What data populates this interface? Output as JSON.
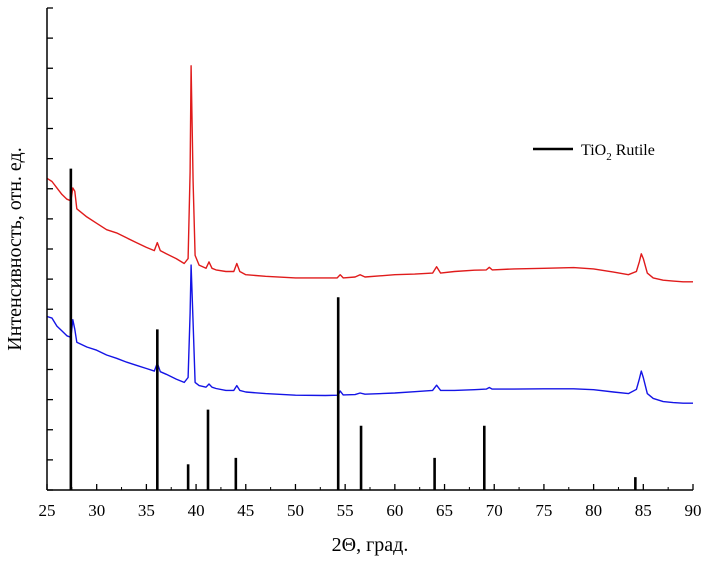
{
  "chart_data": {
    "type": "line",
    "xlabel": "2Θ, град.",
    "ylabel": "Интенсивность, отн. ед.",
    "xlim": [
      25,
      90
    ],
    "x_ticks": [
      25,
      30,
      35,
      40,
      45,
      50,
      55,
      60,
      65,
      70,
      75,
      80,
      85,
      90
    ],
    "y_tick_count": 16,
    "grid": false,
    "legend": {
      "placement": "top-right",
      "entries": [
        {
          "label": "TiO₂ Rutile",
          "label_main": "TiO",
          "label_sub": "2",
          "label_tail": " Rutile",
          "color": "#000000",
          "style": "stick"
        }
      ]
    },
    "series": [
      {
        "color": "#e01b1b",
        "style": "line",
        "points": [
          [
            25.0,
            97
          ],
          [
            25.5,
            96
          ],
          [
            26.0,
            94
          ],
          [
            26.5,
            92
          ],
          [
            27.0,
            90.5
          ],
          [
            27.4,
            90
          ],
          [
            27.6,
            94
          ],
          [
            27.8,
            93
          ],
          [
            28.0,
            87.5
          ],
          [
            29,
            85
          ],
          [
            30,
            83
          ],
          [
            31,
            81
          ],
          [
            32,
            80
          ],
          [
            33,
            78.5
          ],
          [
            34,
            77
          ],
          [
            35,
            75.5
          ],
          [
            35.8,
            74.5
          ],
          [
            36.1,
            77
          ],
          [
            36.4,
            74.5
          ],
          [
            37,
            73.5
          ],
          [
            38,
            72
          ],
          [
            38.8,
            70.5
          ],
          [
            39.2,
            72
          ],
          [
            39.4,
            99
          ],
          [
            39.5,
            132
          ],
          [
            39.7,
            96
          ],
          [
            39.9,
            73
          ],
          [
            40.3,
            70
          ],
          [
            41,
            69
          ],
          [
            41.3,
            71
          ],
          [
            41.6,
            69
          ],
          [
            42,
            68.5
          ],
          [
            43,
            68
          ],
          [
            43.8,
            68
          ],
          [
            44.1,
            70.5
          ],
          [
            44.4,
            68
          ],
          [
            45,
            67
          ],
          [
            47,
            66.5
          ],
          [
            50,
            66
          ],
          [
            53,
            66
          ],
          [
            54.2,
            66
          ],
          [
            54.5,
            67
          ],
          [
            54.8,
            66
          ],
          [
            56,
            66.3
          ],
          [
            56.5,
            67
          ],
          [
            57,
            66.3
          ],
          [
            60,
            67
          ],
          [
            62,
            67.2
          ],
          [
            63.8,
            67.5
          ],
          [
            64.2,
            69.5
          ],
          [
            64.6,
            67.5
          ],
          [
            66,
            68
          ],
          [
            68,
            68.4
          ],
          [
            69.2,
            68.5
          ],
          [
            69.5,
            69.3
          ],
          [
            69.8,
            68.5
          ],
          [
            72,
            68.8
          ],
          [
            75,
            69
          ],
          [
            78,
            69.2
          ],
          [
            80,
            68.8
          ],
          [
            82,
            67.8
          ],
          [
            83.5,
            67
          ],
          [
            84.3,
            68
          ],
          [
            84.6,
            71
          ],
          [
            84.8,
            73.5
          ],
          [
            85.0,
            72
          ],
          [
            85.4,
            67.5
          ],
          [
            86,
            66
          ],
          [
            87,
            65.3
          ],
          [
            88,
            65
          ],
          [
            89,
            64.8
          ],
          [
            90,
            64.8
          ]
        ]
      },
      {
        "color": "#1414e6",
        "style": "line",
        "points": [
          [
            25.0,
            54
          ],
          [
            25.5,
            53.5
          ],
          [
            26.0,
            51
          ],
          [
            26.5,
            49.5
          ],
          [
            27.0,
            48
          ],
          [
            27.4,
            47.5
          ],
          [
            27.6,
            53
          ],
          [
            27.8,
            50
          ],
          [
            28.0,
            46
          ],
          [
            29,
            44.5
          ],
          [
            30,
            43.5
          ],
          [
            31,
            42
          ],
          [
            32,
            41
          ],
          [
            33,
            39.8
          ],
          [
            34,
            38.8
          ],
          [
            35,
            37.8
          ],
          [
            35.8,
            37
          ],
          [
            36.1,
            39.5
          ],
          [
            36.4,
            36.8
          ],
          [
            37,
            36
          ],
          [
            38,
            34.5
          ],
          [
            38.8,
            33.5
          ],
          [
            39.2,
            35
          ],
          [
            39.4,
            55
          ],
          [
            39.5,
            70
          ],
          [
            39.7,
            52
          ],
          [
            39.9,
            33.5
          ],
          [
            40.3,
            32.5
          ],
          [
            41,
            32
          ],
          [
            41.3,
            33
          ],
          [
            41.6,
            32
          ],
          [
            42,
            31.6
          ],
          [
            43,
            31
          ],
          [
            43.8,
            31
          ],
          [
            44.1,
            32.5
          ],
          [
            44.4,
            31
          ],
          [
            45,
            30.5
          ],
          [
            47,
            30
          ],
          [
            50,
            29.5
          ],
          [
            53,
            29.4
          ],
          [
            54.3,
            29.5
          ],
          [
            54.5,
            30.8
          ],
          [
            54.8,
            29.6
          ],
          [
            56,
            29.7
          ],
          [
            56.5,
            30.2
          ],
          [
            57,
            29.8
          ],
          [
            60,
            30.2
          ],
          [
            62,
            30.6
          ],
          [
            63.8,
            31
          ],
          [
            64.2,
            32.6
          ],
          [
            64.6,
            31
          ],
          [
            66,
            31
          ],
          [
            68,
            31.2
          ],
          [
            69.2,
            31.4
          ],
          [
            69.5,
            31.9
          ],
          [
            69.8,
            31.4
          ],
          [
            72,
            31.4
          ],
          [
            75,
            31.5
          ],
          [
            78,
            31.5
          ],
          [
            80,
            31.2
          ],
          [
            82,
            30.5
          ],
          [
            83.5,
            30
          ],
          [
            84.3,
            31.3
          ],
          [
            84.6,
            34.5
          ],
          [
            84.8,
            37
          ],
          [
            85.0,
            35
          ],
          [
            85.4,
            30
          ],
          [
            86,
            28.5
          ],
          [
            87,
            27.5
          ],
          [
            88,
            27.2
          ],
          [
            89,
            27
          ],
          [
            90,
            27
          ]
        ]
      },
      {
        "name": "TiO₂ Rutile",
        "color": "#000000",
        "style": "stick",
        "x": [
          27.4,
          36.1,
          39.2,
          41.2,
          44.0,
          54.3,
          56.6,
          64.0,
          69.0,
          84.2
        ],
        "values": [
          100,
          50,
          8,
          25,
          10,
          60,
          20,
          10,
          20,
          4
        ]
      }
    ]
  }
}
